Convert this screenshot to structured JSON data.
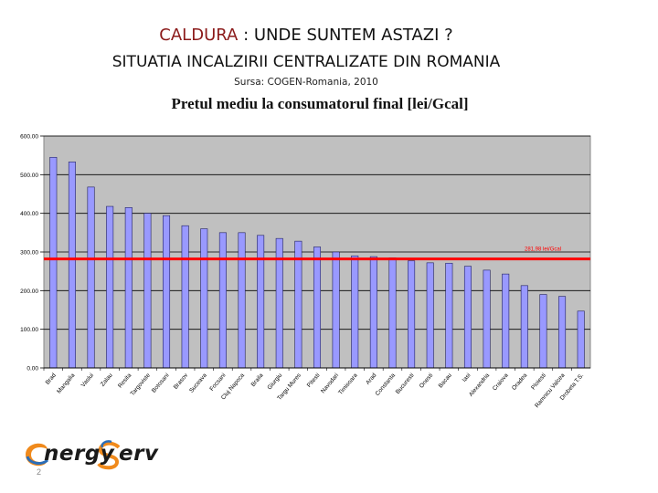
{
  "slide": {
    "title_highlight": "CALDURA",
    "title_rest": " : UNDE SUNTEM ASTAZI ?",
    "subtitle": "SITUATIA  INCALZIRII CENTRALIZATE  DIN ROMANIA",
    "source": "Sursa: COGEN-Romania,  2010",
    "logo_part1": "nergy",
    "logo_part2": "erv",
    "page_number": "2"
  },
  "colors": {
    "bar_fill": "#9999ff",
    "plot_bg": "#c0c0c0",
    "reference_line": "#ff0000",
    "title_accent": "#8b1a1a",
    "logo_orange": "#f08a1c",
    "logo_blue": "#2a6db8"
  },
  "chart_data": {
    "type": "bar",
    "title": "Pretul mediu la consumatorul final [lei/Gcal]",
    "categories": [
      "Brad",
      "Mangalia",
      "Vaslui",
      "Zalau",
      "Resita",
      "Targoviste",
      "Botosani",
      "Brasov",
      "Suceava",
      "Focsani",
      "Cluj Napoca",
      "Braila",
      "Giurgiu",
      "Targu Mures",
      "Pitesti",
      "Navodari",
      "Timisoara",
      "Arad",
      "Constanta",
      "Bucuresti",
      "Onesti",
      "Bacau",
      "Iasi",
      "Alexandria",
      "Craiova",
      "Oradea",
      "Ploiesti",
      "Ramnicu Valcea",
      "Drobeta T.S."
    ],
    "values": [
      545,
      533,
      468,
      418,
      415,
      400,
      394,
      368,
      360,
      350,
      350,
      343,
      335,
      328,
      313,
      300,
      290,
      288,
      285,
      277,
      272,
      271,
      263,
      253,
      243,
      213,
      190,
      185,
      147
    ],
    "ylim": [
      0,
      600
    ],
    "yticks": [
      "0.00",
      "100.00",
      "200.00",
      "300.00",
      "400.00",
      "500.00",
      "600.00"
    ],
    "reference_value": 281.98,
    "reference_label": "281,98 lei/Gcal",
    "grid": true,
    "legend": "none"
  }
}
